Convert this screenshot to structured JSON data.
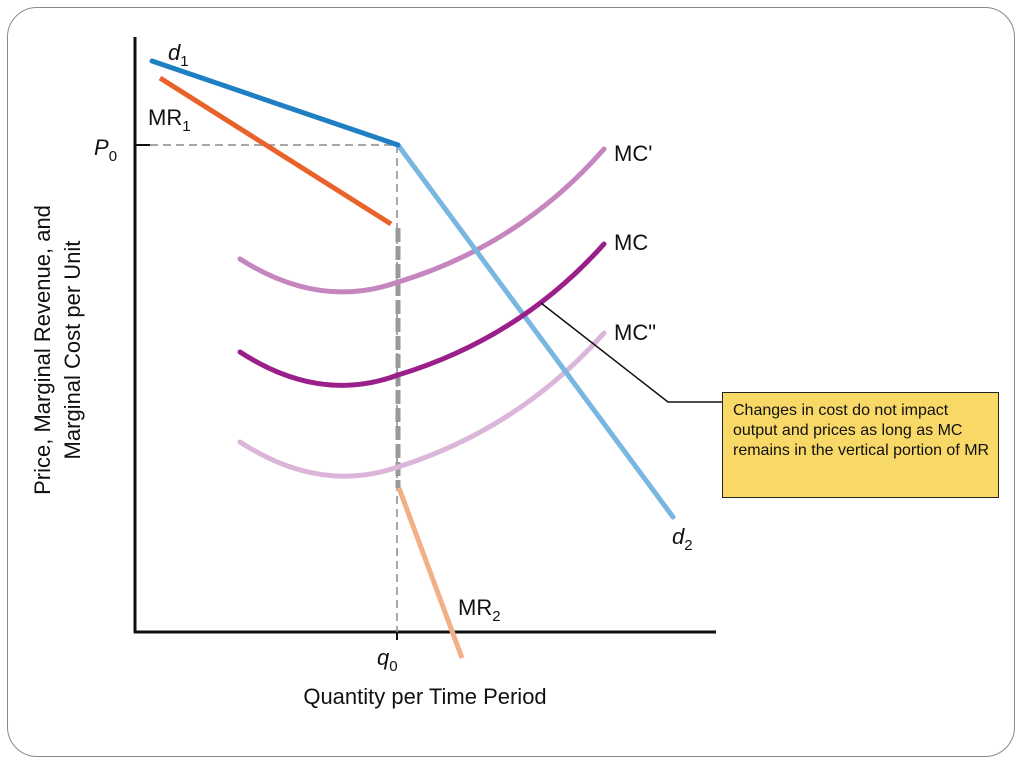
{
  "diagram": {
    "labels": {
      "d1": {
        "main": "d",
        "sub": "1"
      },
      "d2": {
        "main": "d",
        "sub": "2"
      },
      "mr1": {
        "main": "MR",
        "sub": "1"
      },
      "mr2": {
        "main": "MR",
        "sub": "2"
      },
      "p0": {
        "main": "P",
        "sub": "0"
      },
      "q0": {
        "main": "q",
        "sub": "0"
      },
      "mc_prime": "MC'",
      "mc": "MC",
      "mc_double_prime": "MC\""
    },
    "axes": {
      "x_title": "Quantity per Time Period",
      "y_title_line1": "Price, Marginal Revenue, and",
      "y_title_line2": "Marginal Cost per Unit"
    },
    "callout": {
      "text": "Changes in cost do not impact output and prices as long as MC remains in the vertical portion of MR"
    },
    "colors": {
      "d1": "#1f7fc3",
      "d2": "#78b8e0",
      "mr1": "#e8622a",
      "mr2": "#f2b088",
      "mc_prime": "#c585bf",
      "mc": "#9a1f8a",
      "mc_double_prime": "#dcb6da",
      "gap": "#999999",
      "callout_bg": "#f8d866"
    }
  }
}
